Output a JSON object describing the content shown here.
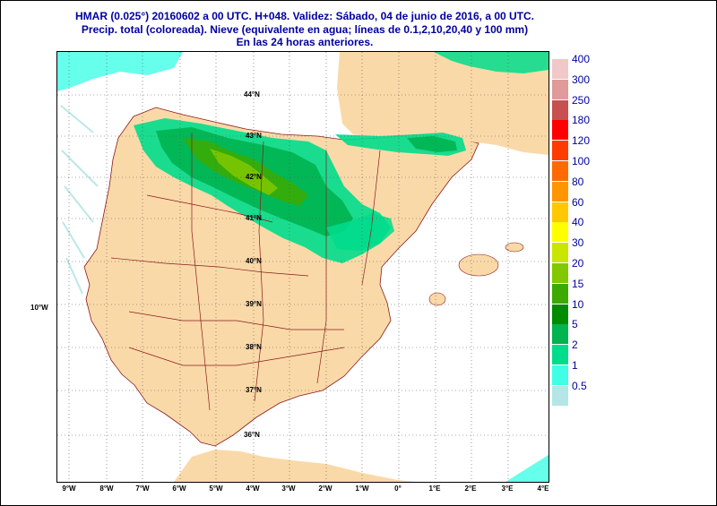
{
  "title": {
    "line1": "HMAR (0.025°) 20160602 a 00 UTC.  H+048. Validez: Sábado, 04 de junio de 2016,  a  00 UTC.",
    "line2": "Precip. total (coloreada). Nieve (equivalente en agua; líneas de 0.1,2,10,20,40 y 100 mm)",
    "line3": "En las 24 horas anteriores."
  },
  "legend": {
    "levels": [
      {
        "label": "400",
        "color": "#f0c8c8"
      },
      {
        "label": "300",
        "color": "#e09a9a"
      },
      {
        "label": "250",
        "color": "#c85050"
      },
      {
        "label": "180",
        "color": "#ff0000"
      },
      {
        "label": "120",
        "color": "#ff3c00"
      },
      {
        "label": "100",
        "color": "#ff6a00"
      },
      {
        "label": "80",
        "color": "#ff9600"
      },
      {
        "label": "60",
        "color": "#ffc800"
      },
      {
        "label": "40",
        "color": "#ffff00"
      },
      {
        "label": "30",
        "color": "#c8e600"
      },
      {
        "label": "20",
        "color": "#82c800"
      },
      {
        "label": "15",
        "color": "#3caa00"
      },
      {
        "label": "10",
        "color": "#008c00"
      },
      {
        "label": "5",
        "color": "#00b450"
      },
      {
        "label": "2",
        "color": "#00dc8c"
      },
      {
        "label": "1",
        "color": "#40ffe6"
      },
      {
        "label": "0.5",
        "color": "#b4e6e6"
      }
    ]
  },
  "lat_labels": [
    "44°N",
    "43°N",
    "42°N",
    "41°N",
    "40°N",
    "39°N",
    "38°N",
    "37°N",
    "36°N"
  ],
  "lon_labels": [
    "9°W",
    "8°W",
    "7°W",
    "6°W",
    "5°W",
    "4°W",
    "3°W",
    "2°W",
    "1°W",
    "0°",
    "1°E",
    "2°E",
    "3°E",
    "4°E"
  ],
  "lon_left_label": "10°W",
  "colors": {
    "land": "#fad9a8",
    "sea": "#ffffff",
    "borders": "#8b1a1a",
    "text": "#0000a0"
  }
}
